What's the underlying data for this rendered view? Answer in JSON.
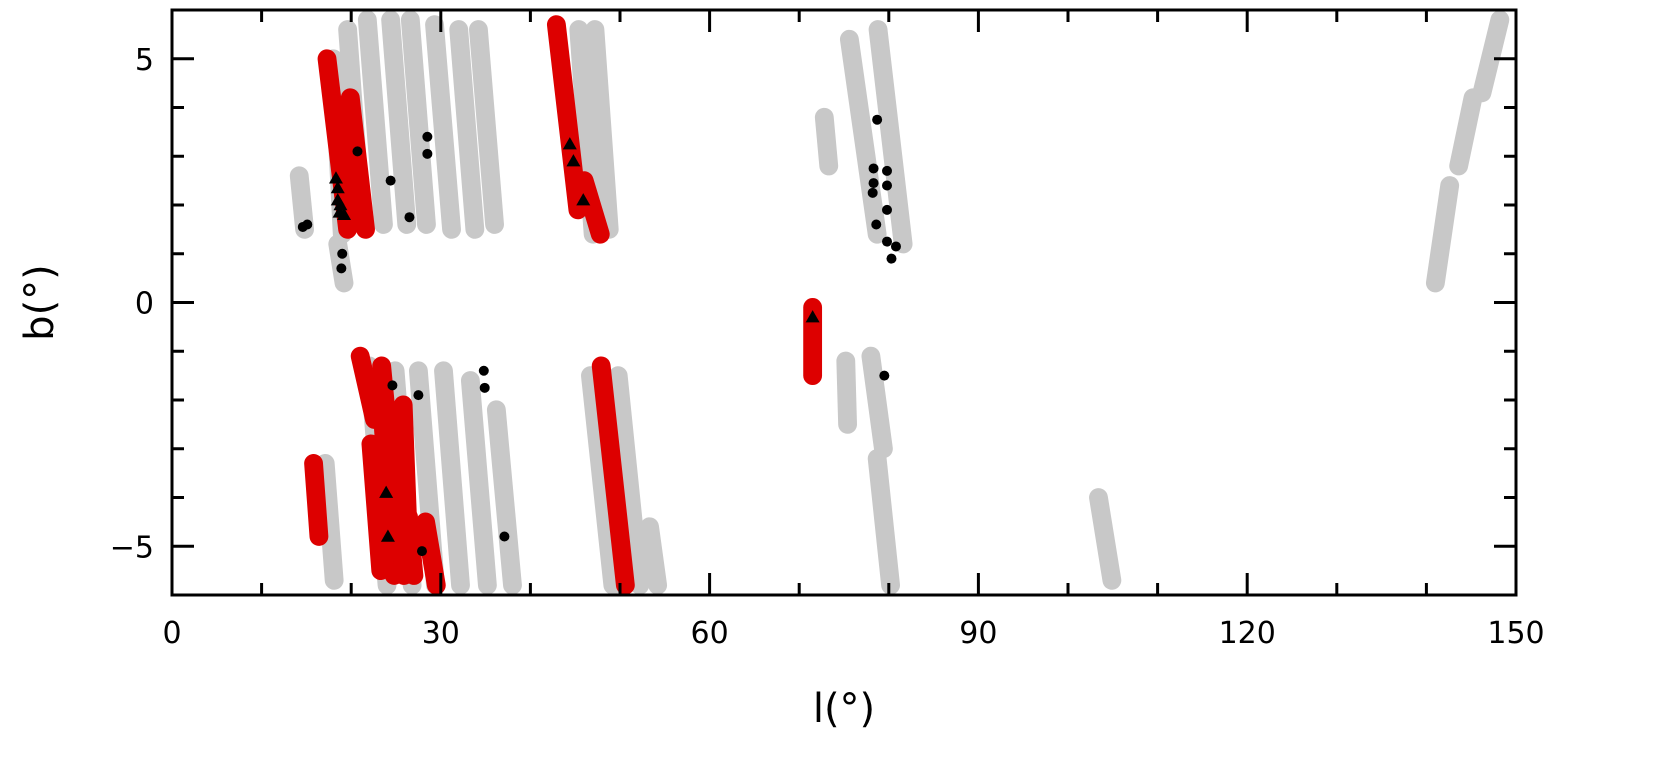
{
  "chart_data": {
    "type": "scatter",
    "title": "",
    "xlabel": "l(°)",
    "ylabel": "b(°)",
    "xlim": [
      0,
      150
    ],
    "ylim": [
      -6,
      6
    ],
    "xticks": [
      0,
      30,
      60,
      90,
      120,
      150
    ],
    "xtick_labels": [
      "0",
      "30",
      "60",
      "90",
      "120",
      "150"
    ],
    "yticks": [
      -5,
      0,
      5
    ],
    "ytick_labels": [
      "−5",
      "0",
      "5"
    ],
    "grid": false,
    "legend": "none",
    "colors": {
      "gray": "#c8c8c8",
      "red": "#dd0000",
      "marker": "#000000",
      "axis": "#000000"
    },
    "fields": [
      {
        "color": "gray",
        "l": 14.8,
        "b": 1.5,
        "l2": 14.2,
        "b2": 2.6
      },
      {
        "color": "gray",
        "l": 19.2,
        "b": 0.4,
        "l2": 18.5,
        "b2": 1.2
      },
      {
        "color": "gray",
        "l": 19.0,
        "b": 1.4,
        "l2": 18.0,
        "b2": 5.0
      },
      {
        "color": "gray",
        "l": 21.2,
        "b": 1.6,
        "l2": 19.6,
        "b2": 5.6
      },
      {
        "color": "gray",
        "l": 23.6,
        "b": 1.6,
        "l2": 21.8,
        "b2": 5.8
      },
      {
        "color": "gray",
        "l": 26.2,
        "b": 1.6,
        "l2": 24.4,
        "b2": 5.8
      },
      {
        "color": "gray",
        "l": 28.4,
        "b": 1.6,
        "l2": 26.6,
        "b2": 5.8
      },
      {
        "color": "gray",
        "l": 31.2,
        "b": 1.5,
        "l2": 29.3,
        "b2": 5.7
      },
      {
        "color": "gray",
        "l": 33.8,
        "b": 1.5,
        "l2": 32.0,
        "b2": 5.6
      },
      {
        "color": "gray",
        "l": 36.0,
        "b": 1.6,
        "l2": 34.2,
        "b2": 5.6
      },
      {
        "color": "gray",
        "l": 47.0,
        "b": 1.4,
        "l2": 45.4,
        "b2": 5.6
      },
      {
        "color": "gray",
        "l": 48.8,
        "b": 1.5,
        "l2": 47.2,
        "b2": 5.6
      },
      {
        "color": "gray",
        "l": 73.3,
        "b": 2.8,
        "l2": 72.8,
        "b2": 3.8
      },
      {
        "color": "gray",
        "l": 78.7,
        "b": 1.4,
        "l2": 75.6,
        "b2": 5.4
      },
      {
        "color": "gray",
        "l": 81.6,
        "b": 1.2,
        "l2": 78.8,
        "b2": 5.6
      },
      {
        "color": "gray",
        "l": 104.9,
        "b": -5.7,
        "l2": 103.4,
        "b2": -4.0
      },
      {
        "color": "gray",
        "l": 141.0,
        "b": 0.4,
        "l2": 142.6,
        "b2": 2.4
      },
      {
        "color": "gray",
        "l": 143.6,
        "b": 2.8,
        "l2": 145.2,
        "b2": 4.2
      },
      {
        "color": "gray",
        "l": 146.2,
        "b": 4.3,
        "l2": 148.2,
        "b2": 5.8
      },
      {
        "color": "gray",
        "l": 18.1,
        "b": -5.7,
        "l2": 17.1,
        "b2": -3.3
      },
      {
        "color": "gray",
        "l": 24.0,
        "b": -5.8,
        "l2": 22.0,
        "b2": -1.3
      },
      {
        "color": "gray",
        "l": 26.8,
        "b": -5.8,
        "l2": 24.9,
        "b2": -1.4
      },
      {
        "color": "gray",
        "l": 29.4,
        "b": -5.8,
        "l2": 27.5,
        "b2": -1.4
      },
      {
        "color": "gray",
        "l": 32.2,
        "b": -5.8,
        "l2": 30.3,
        "b2": -1.4
      },
      {
        "color": "gray",
        "l": 35.2,
        "b": -5.8,
        "l2": 33.3,
        "b2": -1.6
      },
      {
        "color": "gray",
        "l": 38.0,
        "b": -5.8,
        "l2": 36.2,
        "b2": -2.2
      },
      {
        "color": "gray",
        "l": 49.2,
        "b": -5.8,
        "l2": 46.7,
        "b2": -1.5
      },
      {
        "color": "gray",
        "l": 52.2,
        "b": -5.8,
        "l2": 49.8,
        "b2": -1.5
      },
      {
        "color": "gray",
        "l": 54.2,
        "b": -5.8,
        "l2": 53.3,
        "b2": -4.6
      },
      {
        "color": "gray",
        "l": 75.4,
        "b": -2.5,
        "l2": 75.2,
        "b2": -1.2
      },
      {
        "color": "gray",
        "l": 79.4,
        "b": -3.0,
        "l2": 78.0,
        "b2": -1.1
      },
      {
        "color": "gray",
        "l": 80.2,
        "b": -5.8,
        "l2": 78.7,
        "b2": -3.2
      },
      {
        "color": "red",
        "l": 19.6,
        "b": 1.5,
        "l2": 17.3,
        "b2": 5.0
      },
      {
        "color": "red",
        "l": 21.6,
        "b": 1.5,
        "l2": 19.9,
        "b2": 4.2
      },
      {
        "color": "red",
        "l": 45.3,
        "b": 1.9,
        "l2": 42.9,
        "b2": 5.7
      },
      {
        "color": "red",
        "l": 47.8,
        "b": 1.4,
        "l2": 46.0,
        "b2": 2.5
      },
      {
        "color": "red",
        "l": 71.5,
        "b": -1.5,
        "l2": 71.5,
        "b2": -0.1
      },
      {
        "color": "red",
        "l": 16.4,
        "b": -4.8,
        "l2": 15.8,
        "b2": -3.3
      },
      {
        "color": "red",
        "l": 22.6,
        "b": -2.4,
        "l2": 21.0,
        "b2": -1.1
      },
      {
        "color": "red",
        "l": 24.6,
        "b": -3.6,
        "l2": 23.4,
        "b2": -1.3
      },
      {
        "color": "red",
        "l": 23.3,
        "b": -5.5,
        "l2": 22.2,
        "b2": -2.9
      },
      {
        "color": "red",
        "l": 24.8,
        "b": -5.6,
        "l2": 23.6,
        "b2": -2.6
      },
      {
        "color": "red",
        "l": 25.9,
        "b": -5.6,
        "l2": 25.3,
        "b2": -4.3
      },
      {
        "color": "red",
        "l": 26.3,
        "b": -4.5,
        "l2": 25.8,
        "b2": -2.1
      },
      {
        "color": "red",
        "l": 27.0,
        "b": -5.6,
        "l2": 26.4,
        "b2": -4.4
      },
      {
        "color": "red",
        "l": 29.5,
        "b": -5.8,
        "l2": 28.3,
        "b2": -4.5
      },
      {
        "color": "red",
        "l": 50.6,
        "b": -5.8,
        "l2": 47.9,
        "b2": -1.3
      }
    ],
    "circles": [
      [
        14.6,
        1.55
      ],
      [
        15.1,
        1.6
      ],
      [
        18.9,
        0.7
      ],
      [
        19.0,
        1.0
      ],
      [
        20.7,
        3.1
      ],
      [
        24.4,
        2.5
      ],
      [
        26.5,
        1.75
      ],
      [
        28.5,
        3.4
      ],
      [
        28.5,
        3.05
      ],
      [
        78.7,
        3.75
      ],
      [
        78.3,
        2.75
      ],
      [
        78.3,
        2.45
      ],
      [
        78.2,
        2.25
      ],
      [
        79.8,
        2.7
      ],
      [
        79.8,
        2.4
      ],
      [
        79.8,
        1.9
      ],
      [
        78.6,
        1.6
      ],
      [
        79.8,
        1.25
      ],
      [
        80.3,
        0.9
      ],
      [
        80.8,
        1.15
      ],
      [
        24.6,
        -1.7
      ],
      [
        27.5,
        -1.9
      ],
      [
        34.8,
        -1.4
      ],
      [
        34.9,
        -1.75
      ],
      [
        37.1,
        -4.8
      ],
      [
        79.5,
        -1.5
      ],
      [
        27.9,
        -5.1
      ]
    ],
    "triangles": [
      [
        18.3,
        2.55
      ],
      [
        18.5,
        2.35
      ],
      [
        18.5,
        2.1
      ],
      [
        18.8,
        2.0
      ],
      [
        18.7,
        1.85
      ],
      [
        19.2,
        1.8
      ],
      [
        44.4,
        3.25
      ],
      [
        44.8,
        2.9
      ],
      [
        45.9,
        2.1
      ],
      [
        71.5,
        -0.3
      ],
      [
        23.9,
        -3.9
      ],
      [
        24.1,
        -4.8
      ]
    ]
  }
}
